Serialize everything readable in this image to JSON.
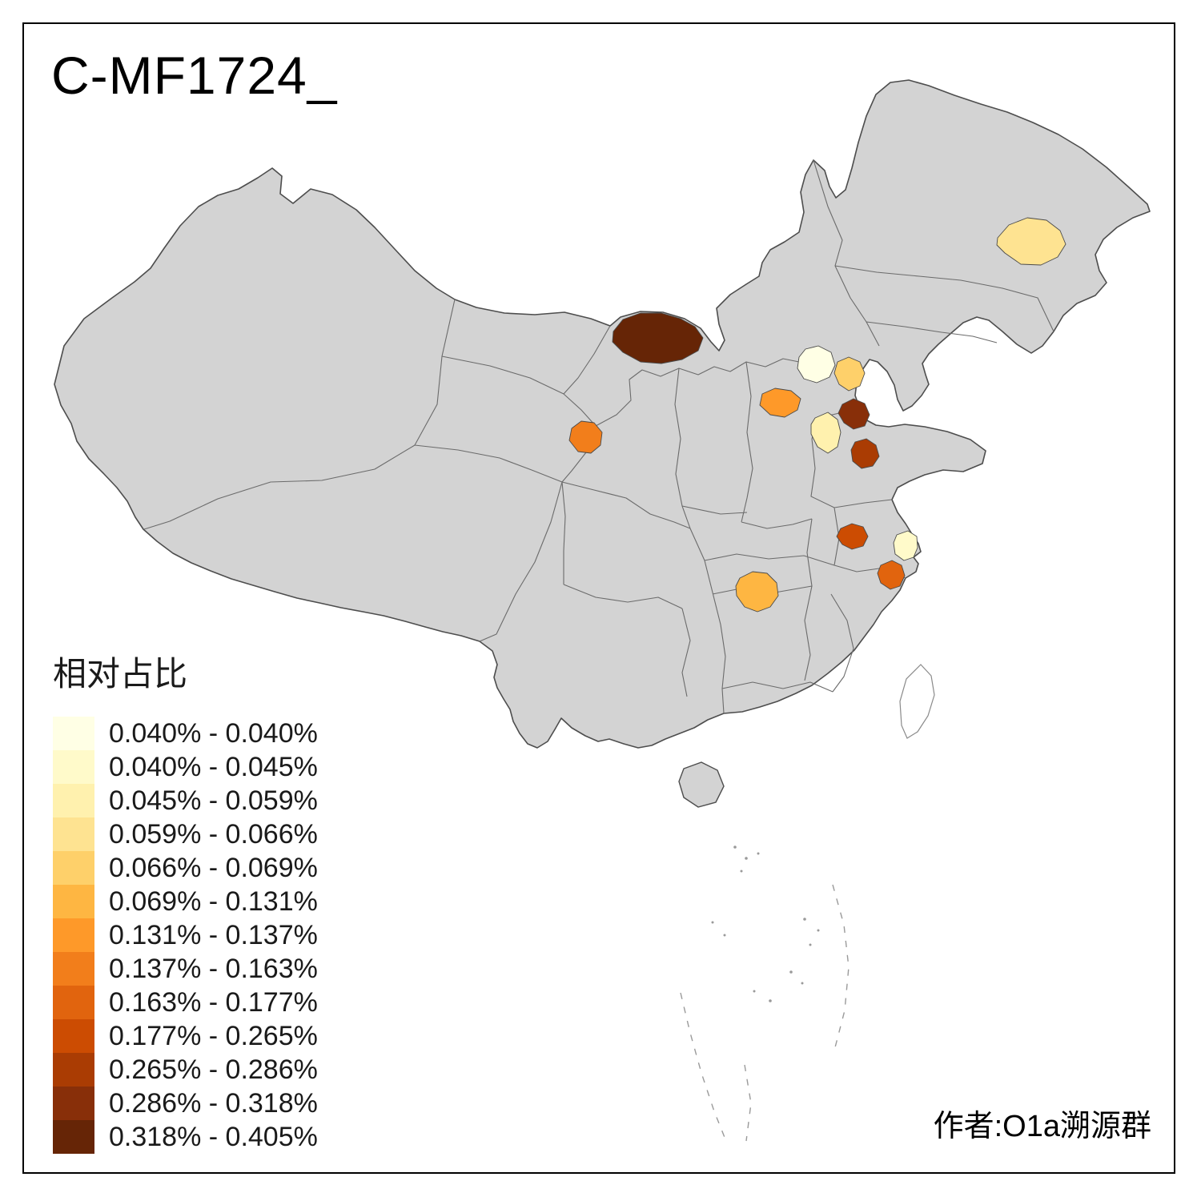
{
  "title": "C-MF1724_",
  "legend": {
    "title": "相对占比",
    "entries": [
      {
        "label": "0.040% - 0.040%",
        "color": "#FFFFE5"
      },
      {
        "label": "0.040% - 0.045%",
        "color": "#FFFACA"
      },
      {
        "label": "0.045% - 0.059%",
        "color": "#FFF1AE"
      },
      {
        "label": "0.059% - 0.066%",
        "color": "#FEE391"
      },
      {
        "label": "0.066% - 0.069%",
        "color": "#FED06A"
      },
      {
        "label": "0.069% - 0.131%",
        "color": "#FEB642"
      },
      {
        "label": "0.131% - 0.137%",
        "color": "#FE9929"
      },
      {
        "label": "0.137% - 0.163%",
        "color": "#F27E1B"
      },
      {
        "label": "0.163% - 0.177%",
        "color": "#E1640E"
      },
      {
        "label": "0.177% - 0.265%",
        "color": "#CC4C02"
      },
      {
        "label": "0.265% - 0.286%",
        "color": "#AA3C03"
      },
      {
        "label": "0.286% - 0.318%",
        "color": "#882F09"
      },
      {
        "label": "0.318% - 0.405%",
        "color": "#662506"
      }
    ]
  },
  "attribution": "作者:O1a溯源群",
  "map": {
    "base_fill": "#D3D3D3",
    "boundary_color": "#4D4D4D",
    "regions": [
      {
        "id": "beijing-area",
        "class": 1,
        "range": "0.040% - 0.040%",
        "color": "#FFFFE5"
      },
      {
        "id": "shanghai-area",
        "class": 2,
        "range": "0.040% - 0.045%",
        "color": "#FFFACA"
      },
      {
        "id": "shandong-west",
        "class": 3,
        "range": "0.045% - 0.059%",
        "color": "#FFF1AE"
      },
      {
        "id": "heilongjiang-area",
        "class": 4,
        "range": "0.059% - 0.066%",
        "color": "#FEE391"
      },
      {
        "id": "hebei-east",
        "class": 5,
        "range": "0.066% - 0.069%",
        "color": "#FED06A"
      },
      {
        "id": "hunan-north",
        "class": 6,
        "range": "0.069% - 0.131%",
        "color": "#FEB642"
      },
      {
        "id": "hebei-south",
        "class": 7,
        "range": "0.131% - 0.137%",
        "color": "#FE9929"
      },
      {
        "id": "gansu-east",
        "class": 8,
        "range": "0.137% - 0.163%",
        "color": "#F27E1B"
      },
      {
        "id": "zhejiang-north",
        "class": 9,
        "range": "0.163% - 0.177%",
        "color": "#E1640E"
      },
      {
        "id": "anhui-east",
        "class": 10,
        "range": "0.177% - 0.265%",
        "color": "#CC4C02"
      },
      {
        "id": "shandong-central",
        "class": 11,
        "range": "0.265% - 0.286%",
        "color": "#AA3C03"
      },
      {
        "id": "tianjin-coastal",
        "class": 12,
        "range": "0.286% - 0.318%",
        "color": "#882F09"
      },
      {
        "id": "inner-mongolia",
        "class": 13,
        "range": "0.318% - 0.405%",
        "color": "#662506"
      }
    ]
  }
}
